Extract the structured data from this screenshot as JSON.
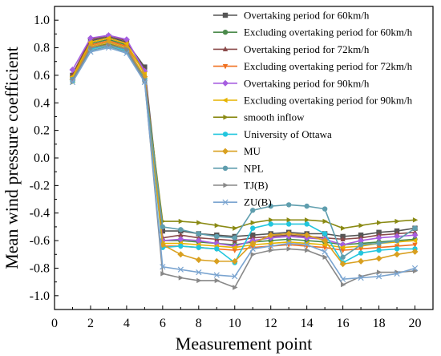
{
  "chart_data": {
    "type": "line",
    "title": "",
    "xlabel": "Measurement point",
    "ylabel": "Mean wind pressure coefficient",
    "xlim": [
      0,
      21
    ],
    "ylim": [
      -1.1,
      1.1
    ],
    "xticks": [
      0,
      2,
      4,
      6,
      8,
      10,
      12,
      14,
      16,
      18,
      20
    ],
    "yticks": [
      -1.0,
      -0.8,
      -0.6,
      -0.4,
      -0.2,
      0.0,
      0.2,
      0.4,
      0.6,
      0.8,
      1.0
    ],
    "ytick_labels": [
      "-1.0",
      "-0.8",
      "-0.6",
      "-0.4",
      "-0.2",
      "0.0",
      "0.2",
      "0.4",
      "0.6",
      "0.8",
      "1.0"
    ],
    "grid": false,
    "legend_position": "top-right",
    "x": [
      1,
      2,
      3,
      4,
      5,
      6,
      7,
      8,
      9,
      10,
      11,
      12,
      13,
      14,
      15,
      16,
      17,
      18,
      19,
      20
    ],
    "series": [
      {
        "name": "Overtaking period for 60km/h",
        "color": "#555555",
        "marker": "square",
        "values": [
          0.6,
          0.85,
          0.88,
          0.84,
          0.66,
          -0.53,
          -0.53,
          -0.55,
          -0.56,
          -0.57,
          -0.56,
          -0.55,
          -0.54,
          -0.55,
          -0.55,
          -0.57,
          -0.56,
          -0.54,
          -0.53,
          -0.51
        ]
      },
      {
        "name": "Excluding overtaking period for 60km/h",
        "color": "#4a8a4a",
        "marker": "circle",
        "values": [
          0.58,
          0.83,
          0.86,
          0.82,
          0.63,
          -0.6,
          -0.6,
          -0.61,
          -0.62,
          -0.63,
          -0.61,
          -0.6,
          -0.59,
          -0.6,
          -0.61,
          -0.63,
          -0.62,
          -0.61,
          -0.6,
          -0.59
        ]
      },
      {
        "name": "Excluding overtaking period for 72km/h",
        "color": "#f07020",
        "marker": "triangle-down",
        "values": [
          0.57,
          0.82,
          0.85,
          0.81,
          0.62,
          -0.64,
          -0.64,
          -0.65,
          -0.66,
          -0.67,
          -0.65,
          -0.64,
          -0.63,
          -0.64,
          -0.65,
          -0.67,
          -0.66,
          -0.65,
          -0.64,
          -0.63
        ]
      },
      {
        "name": "Overtaking period for 72km/h",
        "color": "#8a4a4a",
        "marker": "triangle-up",
        "values": [
          0.61,
          0.86,
          0.89,
          0.85,
          0.64,
          -0.58,
          -0.56,
          -0.58,
          -0.59,
          -0.6,
          -0.58,
          -0.57,
          -0.56,
          -0.57,
          -0.58,
          -0.59,
          -0.58,
          -0.56,
          -0.55,
          -0.54
        ]
      },
      {
        "name": "Overtaking period for 90km/h",
        "color": "#a65ee0",
        "marker": "diamond",
        "values": [
          0.64,
          0.87,
          0.89,
          0.86,
          0.63,
          -0.6,
          -0.59,
          -0.6,
          -0.62,
          -0.64,
          -0.6,
          -0.58,
          -0.57,
          -0.58,
          -0.59,
          -0.63,
          -0.6,
          -0.58,
          -0.57,
          -0.56
        ]
      },
      {
        "name": "Excluding overtaking period for 90km/h",
        "color": "#e6b400",
        "marker": "triangle-left",
        "values": [
          0.59,
          0.84,
          0.87,
          0.83,
          0.61,
          -0.62,
          -0.62,
          -0.63,
          -0.64,
          -0.65,
          -0.63,
          -0.62,
          -0.61,
          -0.62,
          -0.63,
          -0.65,
          -0.64,
          -0.62,
          -0.61,
          -0.6
        ]
      },
      {
        "name": "smooth inflow",
        "color": "#8a8a14",
        "marker": "triangle-right",
        "values": [
          0.55,
          0.8,
          0.83,
          0.79,
          0.58,
          -0.46,
          -0.46,
          -0.47,
          -0.49,
          -0.51,
          -0.47,
          -0.45,
          -0.45,
          -0.45,
          -0.46,
          -0.51,
          -0.49,
          -0.47,
          -0.46,
          -0.45
        ]
      },
      {
        "name": "University of Ottawa",
        "color": "#22c6de",
        "marker": "circle",
        "values": [
          0.56,
          0.79,
          0.82,
          0.78,
          0.57,
          -0.65,
          -0.64,
          -0.65,
          -0.66,
          -0.76,
          -0.51,
          -0.48,
          -0.48,
          -0.48,
          -0.55,
          -0.76,
          -0.69,
          -0.67,
          -0.66,
          -0.66
        ]
      },
      {
        "name": "MU",
        "color": "#d9a020",
        "marker": "diamond",
        "values": [
          0.57,
          0.81,
          0.84,
          0.8,
          0.59,
          -0.63,
          -0.7,
          -0.74,
          -0.75,
          -0.75,
          -0.62,
          -0.56,
          -0.55,
          -0.56,
          -0.6,
          -0.77,
          -0.75,
          -0.73,
          -0.7,
          -0.68
        ]
      },
      {
        "name": "NPL",
        "color": "#5f9eae",
        "marker": "circle",
        "values": [
          0.57,
          0.78,
          0.81,
          0.77,
          0.56,
          -0.5,
          -0.52,
          -0.55,
          -0.57,
          -0.58,
          -0.38,
          -0.35,
          -0.34,
          -0.35,
          -0.37,
          -0.72,
          -0.63,
          -0.62,
          -0.6,
          -0.51
        ]
      },
      {
        "name": "TJ(B)",
        "color": "#888888",
        "marker": "triangle-right",
        "values": [
          0.56,
          0.8,
          0.82,
          0.79,
          0.56,
          -0.84,
          -0.87,
          -0.89,
          -0.89,
          -0.94,
          -0.7,
          -0.67,
          -0.66,
          -0.67,
          -0.72,
          -0.92,
          -0.86,
          -0.83,
          -0.83,
          -0.82
        ]
      },
      {
        "name": "ZU(B)",
        "color": "#7aa4d0",
        "marker": "x",
        "values": [
          0.55,
          0.77,
          0.8,
          0.76,
          0.55,
          -0.79,
          -0.81,
          -0.83,
          -0.85,
          -0.86,
          -0.66,
          -0.64,
          -0.62,
          -0.63,
          -0.68,
          -0.88,
          -0.87,
          -0.86,
          -0.84,
          -0.8
        ]
      }
    ],
    "legend_order": [
      0,
      1,
      3,
      2,
      4,
      5,
      6,
      7,
      8,
      9,
      10,
      11
    ]
  }
}
